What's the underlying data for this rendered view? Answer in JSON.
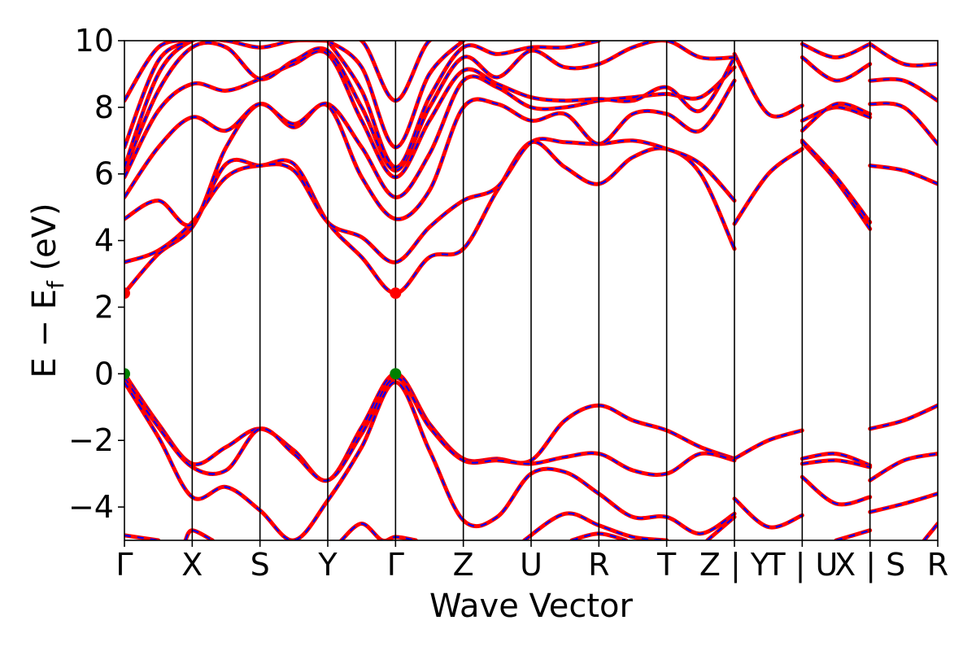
{
  "chart_data": {
    "type": "line",
    "title": "",
    "xlabel": "Wave Vector",
    "ylabel_main": "E − E",
    "ylabel_sub": "f",
    "ylabel_unit": " (eV)",
    "ylim": [
      -5,
      10
    ],
    "yticks": [
      -4,
      -2,
      0,
      2,
      4,
      6,
      8,
      10
    ],
    "ytick_labels": [
      "−4",
      "−2",
      "0",
      "2",
      "4",
      "6",
      "8",
      "10"
    ],
    "grid": false,
    "legend": "none",
    "kpath_breaks": [
      0,
      1,
      2,
      3,
      4,
      5,
      6,
      7,
      8,
      9,
      10,
      11,
      12
    ],
    "kpath_labels": [
      "Γ",
      "X",
      "S",
      "Y",
      "Γ",
      "Z",
      "U",
      "R",
      "T",
      "Z | Y",
      "T | U",
      "X | S",
      "R"
    ],
    "series_styles": [
      {
        "name": "",
        "color": "#ff0000",
        "style": "solid"
      },
      {
        "name": "",
        "color": "#0000ff",
        "style": "dashed"
      }
    ],
    "special_points": [
      {
        "x": 0,
        "y": 2.42,
        "color": "#ff0000",
        "label": ""
      },
      {
        "x": 4,
        "y": 2.42,
        "color": "#ff0000",
        "label": ""
      },
      {
        "x": 0,
        "y": 0,
        "color": "#008000",
        "label": ""
      },
      {
        "x": 4,
        "y": 0,
        "color": "#008000",
        "label": ""
      }
    ],
    "bands": [
      [
        [
          0,
          0
        ],
        [
          0.5,
          -1.5
        ],
        [
          1,
          -2.7
        ],
        [
          1.5,
          -2.2
        ],
        [
          2,
          -1.65
        ],
        [
          2.5,
          -2.3
        ],
        [
          3,
          -3.2
        ],
        [
          3.5,
          -1.6
        ],
        [
          4,
          0
        ],
        [
          4.5,
          -1.5
        ],
        [
          5,
          -2.55
        ],
        [
          5.5,
          -2.55
        ],
        [
          6,
          -2.6
        ],
        [
          6.5,
          -1.4
        ],
        [
          7,
          -0.95
        ],
        [
          7.5,
          -1.4
        ],
        [
          8,
          -1.7
        ],
        [
          8.5,
          -2.2
        ],
        [
          9,
          -2.55
        ]
      ],
      [
        [
          9,
          -2.55
        ],
        [
          9.5,
          -2.0
        ],
        [
          10,
          -1.7
        ]
      ],
      [
        [
          11,
          -1.65
        ],
        [
          11.5,
          -1.4
        ],
        [
          12,
          -0.95
        ]
      ],
      [
        [
          0,
          -0.12
        ],
        [
          0.5,
          -1.6
        ],
        [
          1,
          -2.8
        ],
        [
          1.5,
          -2.9
        ],
        [
          2,
          -1.65
        ],
        [
          2.5,
          -2.4
        ],
        [
          3,
          -3.2
        ],
        [
          3.5,
          -1.8
        ],
        [
          4,
          -0.12
        ],
        [
          4.5,
          -1.6
        ],
        [
          5,
          -2.6
        ],
        [
          5.5,
          -2.6
        ],
        [
          6,
          -2.7
        ],
        [
          6.5,
          -2.5
        ],
        [
          7,
          -2.4
        ],
        [
          7.5,
          -2.9
        ],
        [
          8,
          -3.0
        ],
        [
          8.5,
          -2.4
        ],
        [
          9,
          -2.6
        ]
      ],
      [
        [
          0,
          -0.25
        ],
        [
          0.5,
          -1.9
        ],
        [
          1,
          -3.7
        ],
        [
          1.5,
          -3.4
        ],
        [
          2,
          -4.1
        ],
        [
          2.5,
          -5.0
        ],
        [
          3,
          -3.8
        ],
        [
          3.5,
          -2.2
        ],
        [
          4,
          -0.25
        ],
        [
          4.5,
          -2.3
        ],
        [
          5,
          -4.4
        ],
        [
          5.5,
          -4.3
        ],
        [
          6,
          -3.0
        ],
        [
          6.5,
          -2.95
        ],
        [
          7,
          -3.6
        ],
        [
          7.5,
          -4.3
        ],
        [
          8,
          -4.3
        ],
        [
          8.5,
          -4.8
        ],
        [
          9,
          -4.2
        ]
      ],
      [
        [
          9,
          -3.75
        ],
        [
          9.5,
          -4.6
        ],
        [
          10,
          -4.25
        ]
      ],
      [
        [
          10,
          -2.55
        ],
        [
          10.5,
          -2.4
        ],
        [
          11,
          -2.75
        ]
      ],
      [
        [
          10,
          -2.7
        ],
        [
          10.5,
          -2.6
        ],
        [
          11,
          -2.8
        ]
      ],
      [
        [
          10,
          -3.1
        ],
        [
          10.5,
          -3.9
        ],
        [
          11,
          -3.7
        ]
      ],
      [
        [
          11,
          -4.15
        ],
        [
          11.5,
          -3.9
        ],
        [
          12,
          -3.6
        ]
      ],
      [
        [
          11,
          -3.2
        ],
        [
          11.5,
          -2.6
        ],
        [
          12,
          -2.4
        ]
      ],
      [
        [
          0,
          2.42
        ],
        [
          0.5,
          3.6
        ],
        [
          1,
          4.4
        ],
        [
          1.5,
          6.3
        ],
        [
          2,
          6.25
        ],
        [
          2.5,
          6.3
        ],
        [
          3,
          4.55
        ],
        [
          3.5,
          3.5
        ],
        [
          4,
          2.42
        ],
        [
          4.5,
          3.5
        ],
        [
          5,
          3.75
        ],
        [
          5.5,
          5.5
        ],
        [
          6,
          6.95
        ],
        [
          6.5,
          6.2
        ],
        [
          7,
          5.7
        ],
        [
          7.5,
          6.5
        ],
        [
          8,
          6.75
        ],
        [
          8.5,
          6.0
        ],
        [
          9,
          3.75
        ]
      ],
      [
        [
          9,
          4.5
        ],
        [
          9.5,
          6.0
        ],
        [
          10,
          6.75
        ]
      ],
      [
        [
          10,
          6.95
        ],
        [
          10.5,
          5.8
        ],
        [
          11,
          4.35
        ]
      ],
      [
        [
          11,
          6.25
        ],
        [
          11.5,
          6.1
        ],
        [
          12,
          5.7
        ]
      ],
      [
        [
          0,
          3.35
        ],
        [
          0.5,
          3.7
        ],
        [
          1,
          4.55
        ],
        [
          1.5,
          5.9
        ],
        [
          2,
          6.25
        ],
        [
          2.5,
          6.1
        ],
        [
          3,
          4.55
        ],
        [
          3.5,
          4.1
        ],
        [
          4,
          3.35
        ],
        [
          4.5,
          4.4
        ],
        [
          5,
          5.2
        ],
        [
          5.5,
          5.6
        ],
        [
          6,
          6.95
        ],
        [
          6.5,
          6.95
        ],
        [
          7,
          6.9
        ],
        [
          7.5,
          7.0
        ],
        [
          8,
          6.75
        ],
        [
          8.5,
          6.3
        ],
        [
          9,
          5.2
        ]
      ],
      [
        [
          10,
          7.0
        ],
        [
          10.5,
          5.9
        ],
        [
          11,
          4.55
        ]
      ],
      [
        [
          0,
          4.65
        ],
        [
          0.5,
          5.2
        ],
        [
          1,
          4.5
        ],
        [
          1.5,
          6.8
        ],
        [
          2,
          8.1
        ],
        [
          2.5,
          7.4
        ],
        [
          3,
          8.05
        ],
        [
          3.5,
          5.9
        ],
        [
          4,
          4.65
        ],
        [
          4.5,
          5.5
        ],
        [
          5,
          8.0
        ],
        [
          5.5,
          8.1
        ],
        [
          6,
          7.6
        ],
        [
          6.5,
          7.8
        ],
        [
          7,
          6.9
        ],
        [
          7.5,
          7.8
        ],
        [
          8,
          7.8
        ],
        [
          8.5,
          7.3
        ],
        [
          9,
          8.8
        ]
      ],
      [
        [
          9,
          9.6
        ],
        [
          9.5,
          7.8
        ],
        [
          10,
          8.05
        ]
      ],
      [
        [
          10,
          7.6
        ],
        [
          10.5,
          8.0
        ],
        [
          11,
          7.7
        ]
      ],
      [
        [
          11,
          8.1
        ],
        [
          11.5,
          8.0
        ],
        [
          12,
          6.9
        ]
      ],
      [
        [
          0,
          5.3
        ],
        [
          0.5,
          6.8
        ],
        [
          1,
          7.7
        ],
        [
          1.5,
          7.3
        ],
        [
          2,
          8.1
        ],
        [
          2.5,
          7.5
        ],
        [
          3,
          8.1
        ],
        [
          3.5,
          6.8
        ],
        [
          4,
          5.3
        ],
        [
          4.5,
          6.6
        ],
        [
          5,
          8.8
        ],
        [
          5.5,
          8.6
        ],
        [
          6,
          8.0
        ],
        [
          6.5,
          8.0
        ],
        [
          7,
          8.2
        ],
        [
          7.5,
          8.3
        ],
        [
          8,
          8.4
        ],
        [
          8.5,
          8.3
        ],
        [
          9,
          9.2
        ]
      ],
      [
        [
          10,
          7.3
        ],
        [
          10.5,
          8.1
        ],
        [
          11,
          7.8
        ]
      ],
      [
        [
          11,
          8.8
        ],
        [
          11.5,
          8.8
        ],
        [
          12,
          8.2
        ]
      ],
      [
        [
          0,
          5.9
        ],
        [
          0.5,
          7.9
        ],
        [
          1,
          8.7
        ],
        [
          1.5,
          8.5
        ],
        [
          2,
          8.85
        ],
        [
          2.5,
          9.3
        ],
        [
          3,
          9.6
        ],
        [
          3.5,
          7.6
        ],
        [
          4,
          5.9
        ],
        [
          4.5,
          7.6
        ],
        [
          5,
          9.1
        ],
        [
          5.5,
          8.7
        ],
        [
          6,
          8.3
        ],
        [
          6.5,
          8.2
        ],
        [
          7,
          8.25
        ],
        [
          7.5,
          8.2
        ],
        [
          8,
          8.6
        ],
        [
          8.5,
          7.9
        ],
        [
          9,
          9.5
        ]
      ],
      [
        [
          10,
          9.5
        ],
        [
          10.5,
          8.8
        ],
        [
          11,
          9.3
        ]
      ],
      [
        [
          11,
          9.9
        ],
        [
          11.5,
          9.3
        ],
        [
          12,
          9.3
        ]
      ],
      [
        [
          0,
          6.1
        ],
        [
          0.5,
          8.5
        ],
        [
          1,
          9.8
        ],
        [
          1.5,
          9.8
        ],
        [
          2,
          8.85
        ],
        [
          2.5,
          9.4
        ],
        [
          3,
          9.7
        ],
        [
          3.5,
          8.0
        ],
        [
          4,
          6.1
        ],
        [
          4.5,
          8.0
        ],
        [
          5,
          9.5
        ],
        [
          5.5,
          8.9
        ],
        [
          6,
          9.7
        ],
        [
          6.5,
          9.2
        ],
        [
          7,
          9.3
        ],
        [
          7.5,
          9.8
        ],
        [
          8,
          10
        ],
        [
          8.5,
          9.5
        ],
        [
          9,
          9.5
        ]
      ],
      [
        [
          10,
          9.9
        ],
        [
          10.5,
          9.5
        ],
        [
          11,
          9.9
        ]
      ],
      [
        [
          0,
          6.2
        ],
        [
          0.5,
          9.0
        ],
        [
          1,
          10
        ],
        [
          1.5,
          10
        ],
        [
          2,
          9.8
        ],
        [
          2.5,
          10
        ],
        [
          3,
          10
        ]
      ],
      [
        [
          3,
          10
        ],
        [
          3.5,
          8.5
        ],
        [
          4,
          6.2
        ],
        [
          4.5,
          8.3
        ],
        [
          5,
          9.8
        ],
        [
          5.5,
          9.6
        ],
        [
          6,
          9.8
        ],
        [
          6.5,
          9.8
        ],
        [
          7,
          10
        ]
      ],
      [
        [
          0,
          6.8
        ],
        [
          0.5,
          9.4
        ],
        [
          1,
          10
        ]
      ],
      [
        [
          3,
          10
        ],
        [
          3.5,
          9.2
        ],
        [
          4,
          6.8
        ],
        [
          4.5,
          9.0
        ],
        [
          5,
          10
        ]
      ],
      [
        [
          0,
          8.2
        ],
        [
          0.5,
          9.8
        ],
        [
          1,
          10
        ]
      ],
      [
        [
          3,
          10
        ],
        [
          3.5,
          10
        ],
        [
          4,
          8.2
        ],
        [
          4.5,
          10
        ],
        [
          5,
          10
        ]
      ],
      [
        [
          0,
          -4.85
        ],
        [
          0.5,
          -5.0
        ]
      ],
      [
        [
          0.9,
          -5.0
        ],
        [
          1,
          -4.7
        ],
        [
          1.3,
          -5.0
        ]
      ],
      [
        [
          3.2,
          -5.0
        ],
        [
          3.5,
          -4.5
        ],
        [
          3.8,
          -5.0
        ],
        [
          4,
          -4.9
        ],
        [
          4.3,
          -5.0
        ]
      ],
      [
        [
          5.9,
          -5.0
        ],
        [
          6.5,
          -4.2
        ],
        [
          7,
          -4.55
        ],
        [
          7.5,
          -4.9
        ],
        [
          8,
          -5.0
        ]
      ],
      [
        [
          6.6,
          -5.0
        ],
        [
          7,
          -4.8
        ],
        [
          7.4,
          -5.0
        ]
      ],
      [
        [
          8.6,
          -5.0
        ],
        [
          9,
          -4.3
        ]
      ],
      [
        [
          10.5,
          -5.0
        ],
        [
          11,
          -4.7
        ]
      ],
      [
        [
          11.8,
          -5.0
        ],
        [
          12,
          -4.5
        ]
      ]
    ]
  }
}
